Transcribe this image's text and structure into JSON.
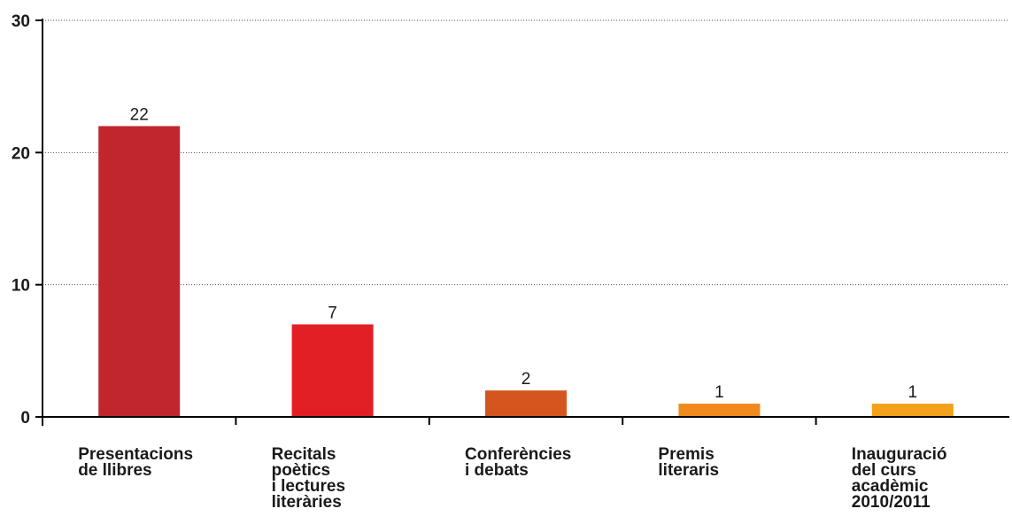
{
  "chart_data": {
    "type": "bar",
    "categories": [
      "Presentacions de llibres",
      "Recitals poètics i lectures literàries",
      "Conferències i debats",
      "Premis literaris",
      "Inauguració del curs acadèmic 2010/2011"
    ],
    "category_lines": [
      [
        "Presentacions",
        "de llibres"
      ],
      [
        "Recitals",
        "poètics",
        "i lectures",
        "literàries"
      ],
      [
        "Conferències",
        "i debats"
      ],
      [
        "Premis",
        "literaris"
      ],
      [
        "Inauguració",
        "del curs",
        "acadèmic",
        "2010/2011"
      ]
    ],
    "values": [
      22,
      7,
      2,
      1,
      1
    ],
    "value_labels": [
      "22",
      "7",
      "2",
      "1",
      "1"
    ],
    "bar_colors": [
      "#c0272d",
      "#e31f26",
      "#d4561e",
      "#f08a1d",
      "#f5a01a"
    ],
    "ylim": [
      0,
      30
    ],
    "yticks": [
      0,
      10,
      20,
      30
    ],
    "ytick_labels": [
      "0",
      "10",
      "20",
      "30"
    ],
    "grid": true,
    "title": "",
    "xlabel": "",
    "ylabel": ""
  }
}
